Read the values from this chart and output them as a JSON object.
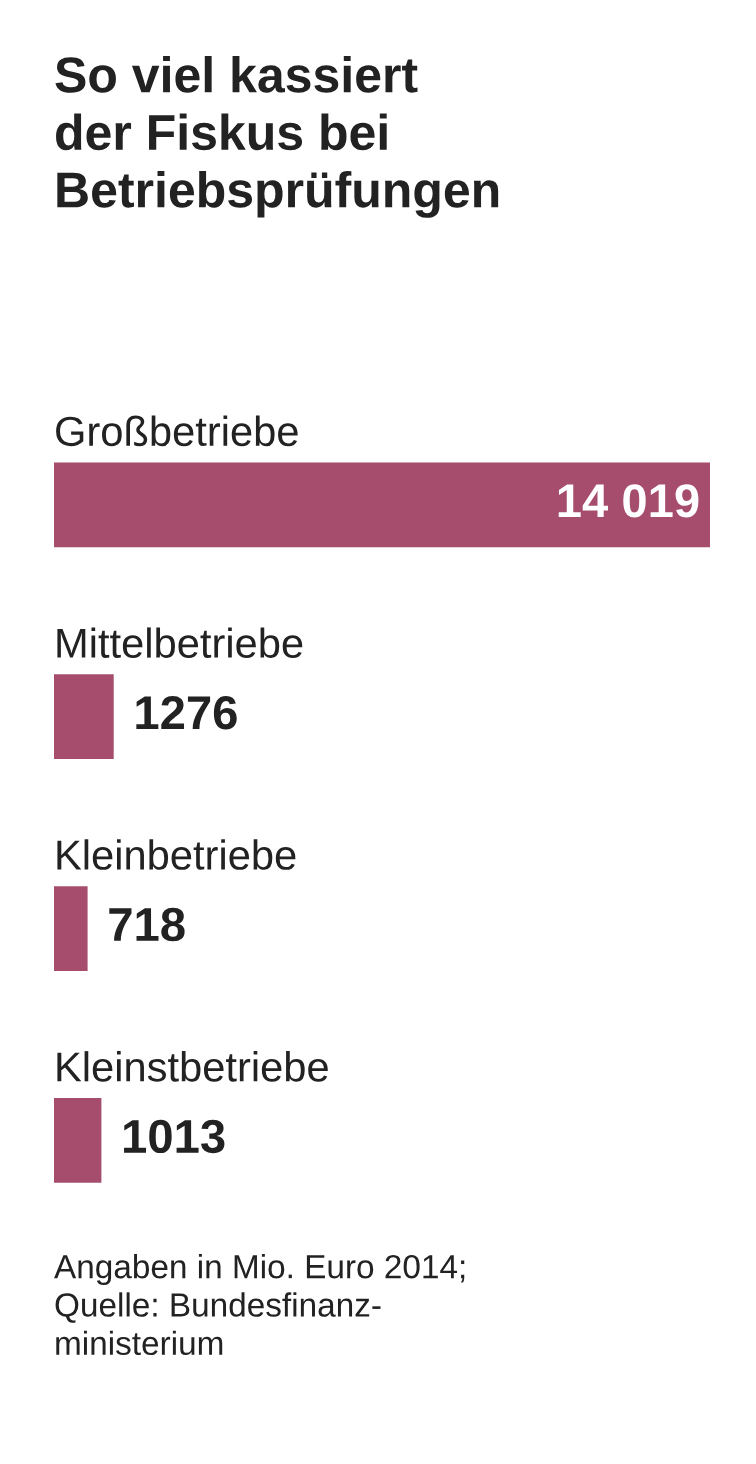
{
  "chart_data": {
    "type": "bar",
    "orientation": "horizontal",
    "title": "So viel kassiert\nder Fiskus bei\nBetriebsprüfungen",
    "categories": [
      "Großbetriebe",
      "Mittelbetriebe",
      "Kleinbetriebe",
      "Kleinstbetriebe"
    ],
    "values": [
      14019,
      1276,
      718,
      1013
    ],
    "value_labels": [
      "14 019",
      "1276",
      "718",
      "1013"
    ],
    "color": "#a64d6e",
    "annotations": [
      "Angaben in Mio. Euro 2014;\nQuelle: Bundesfinanz-\nministerium"
    ]
  }
}
